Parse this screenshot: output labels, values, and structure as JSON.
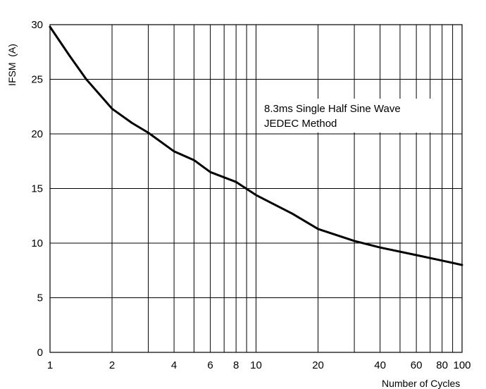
{
  "chart_data": {
    "type": "line",
    "title": "",
    "xlabel": "Number of Cycles",
    "ylabel": "IFSM  (A)",
    "x_scale": "log",
    "xlim": [
      1,
      100
    ],
    "ylim": [
      0,
      30
    ],
    "grid": true,
    "x_ticks": [
      1,
      2,
      4,
      6,
      8,
      10,
      20,
      40,
      60,
      80,
      100
    ],
    "x_tick_labels": [
      "1",
      "2",
      "4",
      "6",
      "8",
      "10",
      "20",
      "40",
      "60",
      "80",
      "100"
    ],
    "x_gridlines": [
      2,
      3,
      4,
      5,
      6,
      7,
      8,
      9,
      10,
      20,
      30,
      40,
      50,
      60,
      70,
      80,
      90,
      100
    ],
    "y_ticks": [
      0,
      5,
      10,
      15,
      20,
      25,
      30
    ],
    "y_tick_labels": [
      "0",
      "5",
      "10",
      "15",
      "20",
      "25",
      "30"
    ],
    "annotation": [
      "8.3ms Single Half Sine Wave",
      "JEDEC Method"
    ],
    "series": [
      {
        "x": [
          1,
          1.25,
          1.5,
          2,
          2.5,
          3,
          4,
          5,
          6,
          8,
          10,
          15,
          20,
          30,
          40,
          60,
          80,
          100
        ],
        "y": [
          29.8,
          27.1,
          25.0,
          22.3,
          21.0,
          20.1,
          18.4,
          17.6,
          16.5,
          15.6,
          14.4,
          12.7,
          11.3,
          10.2,
          9.6,
          8.9,
          8.4,
          8.0
        ]
      }
    ]
  }
}
